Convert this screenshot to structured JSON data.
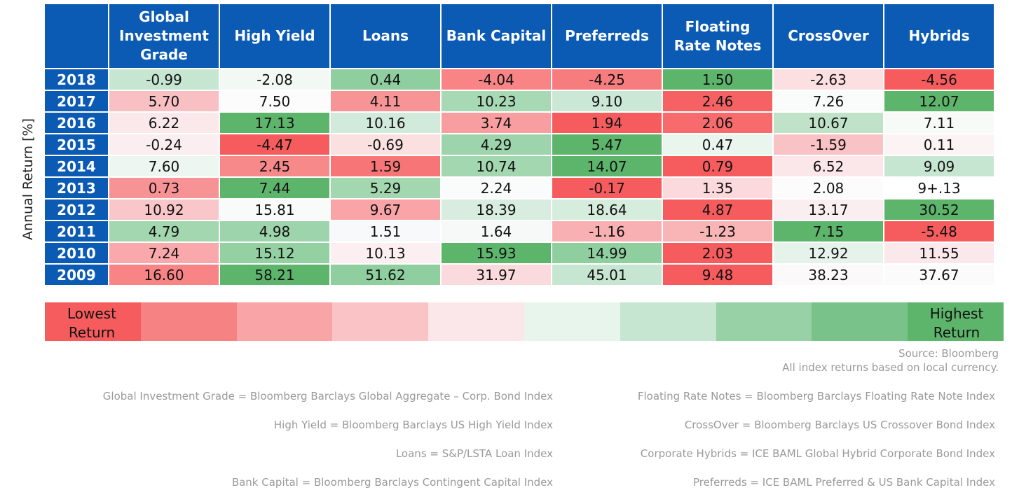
{
  "chart_data": {
    "type": "table",
    "ylabel": "Annual Return [%]",
    "corner": "",
    "columns": [
      "Global Investment Grade",
      "High Yield",
      "Loans",
      "Bank Capital",
      "Preferreds",
      "Floating Rate Notes",
      "CrossOver",
      "Hybrids"
    ],
    "rows": [
      {
        "year": "2018",
        "values": [
          "-0.99",
          "-2.08",
          "0.44",
          "-4.04",
          "-4.25",
          "1.50",
          "-2.63",
          "-4.56"
        ],
        "colors": [
          "#c6e6d1",
          "#f2f8f4",
          "#8fcf9f",
          "#f88486",
          "#f77c7e",
          "#5db56c",
          "#fbdfe1",
          "#f65c5e"
        ]
      },
      {
        "year": "2017",
        "values": [
          "5.70",
          "7.50",
          "4.11",
          "10.23",
          "9.10",
          "2.46",
          "7.26",
          "12.07"
        ],
        "colors": [
          "#f9c0c3",
          "#fcfcfc",
          "#f79596",
          "#a8d9b5",
          "#cbe7d5",
          "#f66264",
          "#fafbfb",
          "#5db56c"
        ]
      },
      {
        "year": "2016",
        "values": [
          "6.22",
          "17.13",
          "10.16",
          "3.74",
          "1.94",
          "2.06",
          "10.67",
          "7.11"
        ],
        "colors": [
          "#fbe8ea",
          "#5db56c",
          "#d2eadb",
          "#f99ea0",
          "#f65c5e",
          "#f86b6d",
          "#bfe2c9",
          "#f7fbf8"
        ]
      },
      {
        "year": "2015",
        "values": [
          "-0.24",
          "-4.47",
          "-0.69",
          "4.29",
          "5.47",
          "0.47",
          "-1.59",
          "0.11"
        ],
        "colors": [
          "#fbeef0",
          "#f65c5e",
          "#fbe0e2",
          "#9dd4ab",
          "#5db56c",
          "#eaf5ee",
          "#f9c2c4",
          "#fbf3f4"
        ]
      },
      {
        "year": "2014",
        "values": [
          "7.60",
          "2.45",
          "1.59",
          "10.74",
          "14.07",
          "0.79",
          "6.52",
          "9.09"
        ],
        "colors": [
          "#edf6f0",
          "#f8898b",
          "#f77577",
          "#a3d7b0",
          "#5db56c",
          "#f65c5e",
          "#fbe7e9",
          "#c6e6d1"
        ]
      },
      {
        "year": "2013",
        "values": [
          "0.73",
          "7.44",
          "5.29",
          "2.24",
          "-0.17",
          "1.35",
          "2.08",
          "9+.13"
        ],
        "colors": [
          "#f89395",
          "#5db56c",
          "#a3d7b0",
          "#fafcfb",
          "#f65c5e",
          "#fbd9dc",
          "#fcfcfc",
          "#ffffff"
        ]
      },
      {
        "year": "2012",
        "values": [
          "10.92",
          "15.81",
          "9.67",
          "18.39",
          "18.64",
          "4.87",
          "13.17",
          "30.52"
        ],
        "colors": [
          "#f9c6c9",
          "#f9fbfa",
          "#f9a4a6",
          "#d8ede0",
          "#d6ecdd",
          "#f65c5e",
          "#fbeef0",
          "#5db56c"
        ]
      },
      {
        "year": "2011",
        "values": [
          "4.79",
          "4.98",
          "1.51",
          "1.64",
          "-1.16",
          "-1.23",
          "7.15",
          "-5.48"
        ],
        "colors": [
          "#a3d7b0",
          "#9dd4ab",
          "#f7f9fb",
          "#f6f9f7",
          "#f9b0b2",
          "#f9b4b6",
          "#5db56c",
          "#f65c5e"
        ]
      },
      {
        "year": "2010",
        "values": [
          "7.24",
          "15.12",
          "10.13",
          "15.93",
          "14.99",
          "2.03",
          "12.92",
          "11.55"
        ],
        "colors": [
          "#f9a9ab",
          "#93d0a2",
          "#fbeff1",
          "#5db56c",
          "#8fcf9f",
          "#f65c5e",
          "#e5f3ea",
          "#fbe8ea"
        ]
      },
      {
        "year": "2009",
        "values": [
          "16.60",
          "58.21",
          "51.62",
          "31.97",
          "45.01",
          "9.48",
          "38.23",
          "37.67"
        ],
        "colors": [
          "#f88486",
          "#5db56c",
          "#8fcf9f",
          "#fbdadd",
          "#c6e6d1",
          "#f65c5e",
          "#fbf9fa",
          "#fbfbfb"
        ]
      }
    ],
    "legend": {
      "low_label": "Lowest Return",
      "high_label": "Highest Return",
      "swatches": [
        "#f65c5e",
        "#f78284",
        "#f9a4a6",
        "#fac4c7",
        "#fbe7e9",
        "#e8f5ed",
        "#c6e6d1",
        "#97d1a5",
        "#79c38a",
        "#5db56c"
      ]
    }
  },
  "source": {
    "line1": "Source:  Bloomberg",
    "line2": "All index returns based on local currency."
  },
  "definitions": {
    "left": [
      "Global Investment Grade = Bloomberg Barclays Global Aggregate – Corp. Bond Index",
      "High Yield = Bloomberg Barclays US High Yield Index",
      "Loans = S&P/LSTA Loan Index",
      "Bank Capital = Bloomberg Barclays Contingent Capital Index"
    ],
    "right": [
      "Floating Rate Notes = Bloomberg Barclays Floating Rate Note Index",
      "CrossOver = Bloomberg Barclays US Crossover Bond Index",
      "Corporate Hybrids = ICE BAML Global Hybrid Corporate Bond Index",
      "Preferreds = ICE BAML Preferred & US Bank Capital Index"
    ]
  }
}
